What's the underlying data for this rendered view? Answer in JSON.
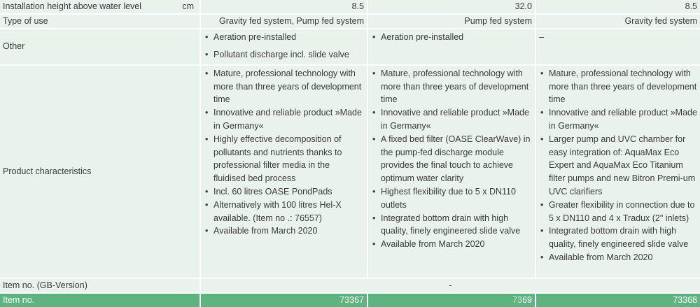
{
  "rows": {
    "height": {
      "label": "Installation height above water level",
      "unit": "cm",
      "values": [
        "8.5",
        "32.0",
        "8.5"
      ]
    },
    "use": {
      "label": "Type of use",
      "values": [
        "Gravity fed system, Pump fed system",
        "Pump fed system",
        "Gravity fed system"
      ]
    },
    "other": {
      "label": "Other",
      "col1": [
        "Aeration pre-installed",
        "Pollutant discharge incl. slide valve"
      ],
      "col2": [
        "Aeration pre-installed"
      ],
      "col3": "–"
    },
    "product": {
      "label": "Product characteristics",
      "col1": [
        "Mature, professional technology with more than three years of development time",
        "Innovative and reliable product »Made in Germany«",
        "Highly effective decomposition of pollutants and nutrients thanks to professional filter media in the fluidised bed process",
        "Incl. 60 litres OASE PondPads",
        "Alternatively with 100 litres Hel-X available. (Item no .: 76557)",
        "Available from March 2020"
      ],
      "col2": [
        "Mature, professional technology with more than three years of development time",
        "Innovative and reliable product »Made in Germany«",
        "A fixed bed filter (OASE ClearWave) in the pump-fed discharge module provides the final touch to achieve optimum water clarity",
        "Highest flexibility due to 5 x DN110 outlets",
        "Integrated bottom drain with high quality, finely engineered slide valve",
        "Available from March 2020"
      ],
      "col3": [
        "Mature, professional technology with more than three years of development time",
        "Innovative and reliable product »Made in Germany«",
        "Larger pump and UVC chamber for easy integration of: AquaMax Eco Expert and AquaMax Eco Titanium filter pumps and new Bitron Premi-um UVC clarifiers",
        "Greater flexibility in connection due to 5 x DN110 and 4 x Tradux (2\" inlets)",
        "Integrated bottom drain with high quality, finely engineered slide valve",
        "Available from March 2020"
      ]
    },
    "item_gb": {
      "label": "Item no. (GB-Version)",
      "value": "-"
    },
    "item_no": {
      "label": "Item no.",
      "values": [
        "73367",
        "69",
        "73368"
      ],
      "col2_obscured": "73"
    }
  }
}
